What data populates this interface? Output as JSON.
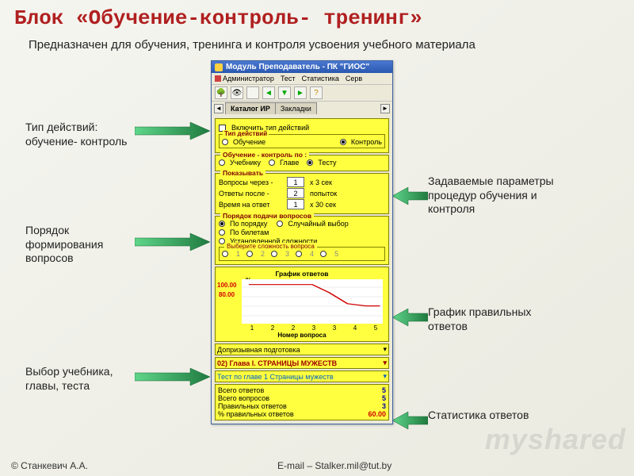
{
  "slide": {
    "title": "Блок «Обучение-контроль- тренинг»",
    "subtitle": "Предназначен для обучения, тренинга и контроля усвоения учебного материала",
    "footer_left": "© Станкевич А.А.",
    "footer_right": "E-mail – Stalker.mil@tut.by",
    "watermark": "myshared"
  },
  "annotations": {
    "a1": "Тип действий:\nобучение- контроль",
    "a2": "Порядок\nформирования\nвопросов",
    "a3": "Выбор учебника,\nглавы, теста",
    "a4": "Задаваемые параметры\nпроцедур обучения и\nконтроля",
    "a5": "График правильных\nответов",
    "a6": "Статистика ответов"
  },
  "arrow_color": "#2e9c4f",
  "window": {
    "title": "Модуль Преподаватель - ПК \"ГИОС\"",
    "menu": {
      "m1": "Администратор",
      "m2": "Тест",
      "m3": "Статистика",
      "m4": "Серв"
    },
    "toolbar_icons": [
      "tree-icon",
      "eye-icon",
      "blank1",
      "arrow-left-icon",
      "arrow-down-icon",
      "arrow-right-icon",
      "question-icon"
    ],
    "tabs": {
      "t1": "Каталог ИР",
      "t2": "Закладки"
    },
    "enable_label": "Включить тип действий",
    "type_group": {
      "legend": "Тип действий",
      "opt1": "Обучение",
      "opt2": "Контроль",
      "selected": 2
    },
    "by_group": {
      "legend": "Обучение - контроль по :",
      "opt1": "Учебнику",
      "opt2": "Главе",
      "opt3": "Тесту",
      "selected": 3
    },
    "params": {
      "legend": "Показывать",
      "r1_label": "Вопросы через -",
      "r1_val": "1",
      "r1_suffix": "x 3 сек",
      "r2_label": "Ответы после -",
      "r2_val": "2",
      "r2_suffix": "попыток",
      "r3_label": "Время на ответ",
      "r3_val": "1",
      "r3_suffix": "x 30 сек"
    },
    "order_group": {
      "legend": "Порядок подачи вопросов",
      "opt1": "По порядку",
      "opt2": "Случайный выбор",
      "opt3": "По билетам",
      "opt4": "Установленной сложности",
      "selected": 1,
      "difficulty_legend": "Выберите сложность вопроса",
      "diff_labels": [
        "1",
        "2",
        "3",
        "4",
        "5"
      ]
    },
    "chart": {
      "title": "График ответов",
      "y_label": "%",
      "y_ticks": [
        "100.00",
        "80.00"
      ],
      "x_label": "Номер вопроса",
      "x_ticks": [
        "1",
        "2",
        "2",
        "3",
        "3",
        "4",
        "5"
      ],
      "line_color": "#d00000",
      "grid_color": "#dddddd",
      "bg": "#ffffff",
      "points": [
        {
          "x": 0.05,
          "y": 0.12
        },
        {
          "x": 0.2,
          "y": 0.12
        },
        {
          "x": 0.35,
          "y": 0.12
        },
        {
          "x": 0.5,
          "y": 0.12
        },
        {
          "x": 0.62,
          "y": 0.3
        },
        {
          "x": 0.75,
          "y": 0.55
        },
        {
          "x": 0.88,
          "y": 0.6
        },
        {
          "x": 0.98,
          "y": 0.6
        }
      ]
    },
    "selects": {
      "s1": "Допризывная подготовка",
      "s2": "02) Глава I. СТРАНИЦЫ МУЖЕСТВ",
      "s3": "Тест по главе 1 Страницы мужеств"
    },
    "stats": {
      "r1_label": "Всего ответов",
      "r1_val": "5",
      "r2_label": "Всего вопросов",
      "r2_val": "5",
      "r3_label": "Правильных ответов",
      "r3_val": "3",
      "r4_label": "% правильных ответов",
      "r4_val": "60.00"
    }
  }
}
